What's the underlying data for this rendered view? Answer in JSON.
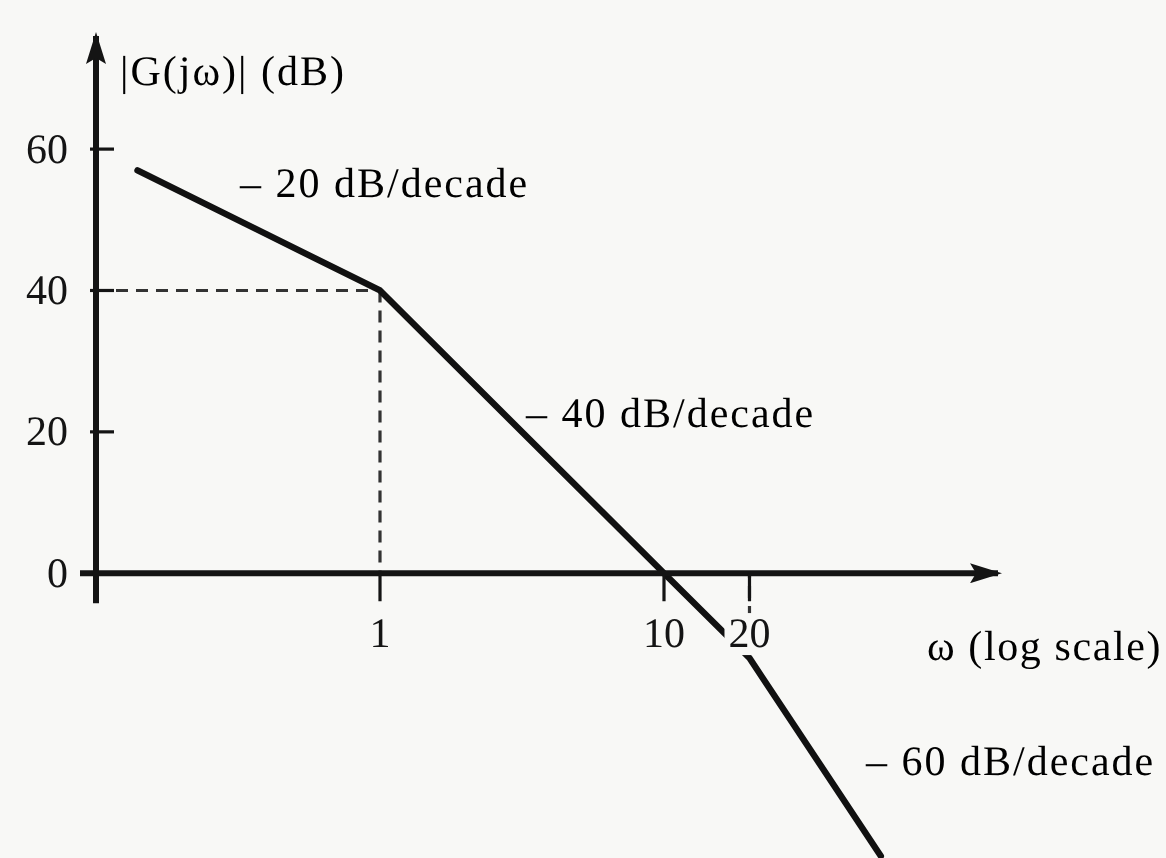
{
  "chart_data": {
    "type": "line",
    "xlabel": "ω (log scale)",
    "ylabel": "|G(jω)| (dB)",
    "log": "x",
    "x": [
      0.14,
      1,
      10,
      20,
      58
    ],
    "series": [
      {
        "color": "#111111",
        "values": [
          57,
          40,
          0,
          -12,
          -40
        ]
      }
    ],
    "xlim": [
      0.1,
      150
    ],
    "xticks": [
      1,
      10,
      20
    ],
    "ylim": [
      -40,
      76
    ],
    "yticks": [
      0,
      20,
      40,
      60
    ],
    "grid": false,
    "marker": "none",
    "line_style": "solid",
    "ref_lines": [
      {
        "axis": "y",
        "value": 40,
        "line_style": "dashed",
        "color": "#333333"
      },
      {
        "axis": "x",
        "value": 1,
        "line_style": "dashed",
        "color": "#333333"
      },
      {
        "axis": "x",
        "value": 20,
        "line_style": "dashed",
        "color": "#333333"
      }
    ],
    "annotations": [
      "– 20 dB/decade",
      "– 40 dB/decade",
      "– 60 dB/decade"
    ]
  }
}
